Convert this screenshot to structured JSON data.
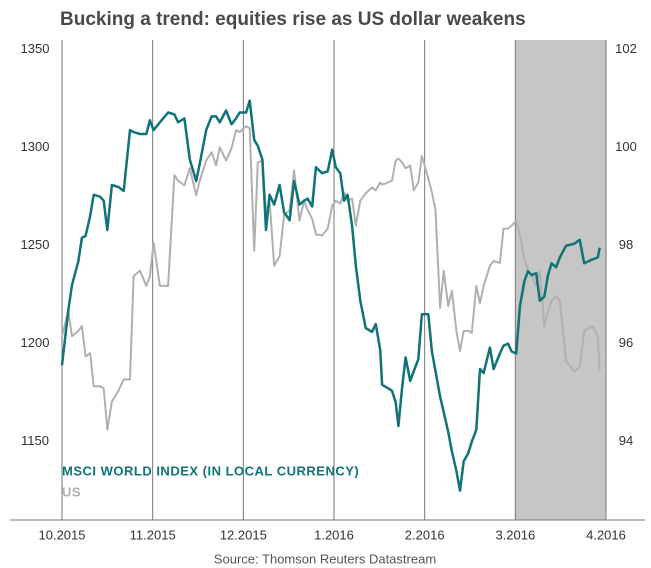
{
  "chart_data": {
    "type": "line",
    "title": "Bucking a trend: equities rise as US dollar weakens",
    "source": "Source: Thomson Reuters Datastream",
    "xlim": [
      0,
      6
    ],
    "xticks": [
      {
        "value": 0,
        "label": "10.2015"
      },
      {
        "value": 1,
        "label": "11.2015"
      },
      {
        "value": 2,
        "label": "12.2015"
      },
      {
        "value": 3,
        "label": "1.2016"
      },
      {
        "value": 4,
        "label": "2.2016"
      },
      {
        "value": 5,
        "label": "3.2016"
      },
      {
        "value": 6,
        "label": "4.2016"
      }
    ],
    "highlight": [
      5,
      6
    ],
    "ylim": [
      1110,
      1355
    ],
    "yticks": [
      1150,
      1200,
      1250,
      1300,
      1350
    ],
    "y2lim": [
      92.4,
      102.2
    ],
    "y2ticks": [
      94,
      96,
      98,
      100,
      102
    ],
    "x": [
      0,
      0.07,
      0.11,
      0.18,
      0.22,
      0.26,
      0.31,
      0.35,
      0.42,
      0.46,
      0.5,
      0.55,
      0.62,
      0.68,
      0.75,
      0.79,
      0.86,
      0.93,
      0.97,
      1.01,
      1.08,
      1.17,
      1.24,
      1.28,
      1.35,
      1.41,
      1.48,
      1.52,
      1.59,
      1.65,
      1.7,
      1.74,
      1.81,
      1.87,
      1.92,
      1.96,
      2.03,
      2.07,
      2.12,
      2.16,
      2.21,
      2.25,
      2.29,
      2.34,
      2.4,
      2.45,
      2.51,
      2.56,
      2.62,
      2.67,
      2.71,
      2.76,
      2.8,
      2.87,
      2.93,
      2.98,
      3.02,
      3.07,
      3.11,
      3.15,
      3.2,
      3.24,
      3.29,
      3.35,
      3.42,
      3.46,
      3.51,
      3.53,
      3.57,
      3.64,
      3.68,
      3.71,
      3.75,
      3.79,
      3.84,
      3.88,
      3.93,
      3.97,
      4.04,
      4.08,
      4.12,
      4.17,
      4.21,
      4.26,
      4.3,
      4.35,
      4.39,
      4.43,
      4.48,
      4.52,
      4.57,
      4.61,
      4.65,
      4.72,
      4.76,
      4.83,
      4.87,
      4.92,
      4.96,
      5.01,
      5.05,
      5.1,
      5.14,
      5.18,
      5.23,
      5.27,
      5.32,
      5.36,
      5.4,
      5.45,
      5.49,
      5.56,
      5.65,
      5.71,
      5.76,
      5.85,
      5.91,
      5.93
    ],
    "series": [
      {
        "name": "MSCI WORLD INDEX (IN LOCAL CURRENCY)",
        "color": "#0f7377",
        "values": [
          1189,
          1217,
          1230,
          1242,
          1254,
          1255,
          1265,
          1276,
          1275,
          1273,
          1258,
          1281,
          1280,
          1278,
          1309,
          1308,
          1307,
          1307,
          1314,
          1309,
          1313,
          1318,
          1317,
          1313,
          1315,
          1294,
          1283,
          1292,
          1309,
          1316,
          1316,
          1313,
          1319,
          1312,
          1315,
          1318,
          1318,
          1324,
          1304,
          1301,
          1294,
          1258,
          1276,
          1271,
          1281,
          1267,
          1263,
          1283,
          1271,
          1273,
          1274,
          1270,
          1290,
          1287,
          1288,
          1299,
          1290,
          1287,
          1273,
          1276,
          1260,
          1240,
          1222,
          1208,
          1206,
          1210,
          1197,
          1179,
          1178,
          1176,
          1170,
          1158,
          1177,
          1193,
          1181,
          1186,
          1192,
          1215,
          1215,
          1196,
          1186,
          1173,
          1165,
          1155,
          1145,
          1135,
          1125,
          1140,
          1144,
          1150,
          1156,
          1187,
          1185,
          1198,
          1187,
          1195,
          1199,
          1200,
          1196,
          1195,
          1219,
          1232,
          1237,
          1235,
          1236,
          1222,
          1224,
          1235,
          1241,
          1239,
          1244,
          1250,
          1251,
          1253,
          1241,
          1243,
          1244,
          1249
        ]
      },
      {
        "name": "US",
        "color": "#b0b0b0",
        "axis": "y2",
        "values": [
          96.15,
          96.67,
          96.15,
          96.26,
          96.36,
          95.74,
          95.81,
          95.13,
          95.13,
          95.09,
          94.25,
          94.82,
          95.03,
          95.27,
          95.27,
          97.38,
          97.49,
          97.18,
          97.38,
          98.06,
          97.18,
          97.18,
          99.44,
          99.33,
          99.23,
          99.58,
          99.03,
          99.33,
          99.74,
          99.91,
          99.64,
          100.01,
          99.74,
          99.99,
          100.36,
          100.32,
          100.44,
          100.4,
          97.9,
          99.7,
          99.74,
          98.68,
          98.92,
          97.59,
          97.79,
          98.62,
          98.72,
          99.54,
          98.51,
          98.92,
          98.72,
          98.55,
          98.23,
          98.21,
          98.35,
          98.82,
          98.92,
          98.86,
          99.09,
          98.92,
          98.96,
          98.41,
          98.92,
          99.07,
          99.19,
          99.13,
          99.29,
          99.25,
          99.27,
          99.33,
          99.74,
          99.78,
          99.7,
          99.58,
          99.64,
          99.13,
          99.29,
          99.83,
          99.37,
          99.09,
          98.72,
          96.73,
          97.49,
          96.77,
          97.08,
          96.26,
          95.85,
          96.26,
          96.26,
          96.22,
          97.18,
          96.83,
          97.18,
          97.59,
          97.69,
          97.65,
          98.35,
          98.35,
          98.41,
          98.51,
          98.21,
          97.73,
          97.49,
          97.38,
          97.18,
          97.49,
          96.36,
          96.67,
          96.87,
          96.97,
          96.87,
          95.64,
          95.44,
          95.52,
          96.26,
          96.36,
          96.15,
          95.44
        ]
      }
    ]
  }
}
